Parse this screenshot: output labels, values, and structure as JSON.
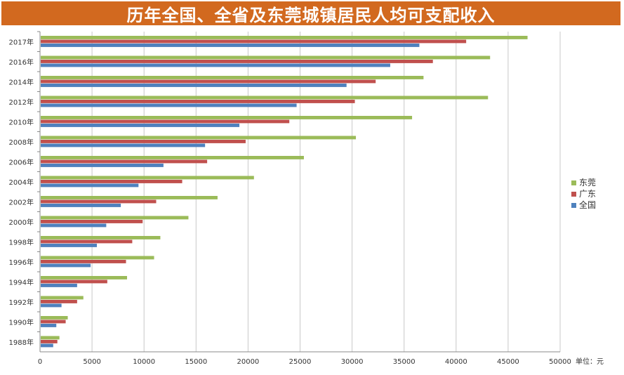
{
  "chart_data": {
    "type": "bar",
    "orientation": "horizontal",
    "title": "历年全国、全省及东莞城镇居民人均可支配收入",
    "unit_label": "单位：元",
    "categories": [
      "2017年",
      "2016年",
      "2014年",
      "2012年",
      "2010年",
      "2008年",
      "2006年",
      "2004年",
      "2002年",
      "2000年",
      "1998年",
      "1996年",
      "1994年",
      "1992年",
      "1990年",
      "1988年"
    ],
    "series": [
      {
        "name": "东莞",
        "color": "#9bbb59",
        "values": [
          46800,
          43200,
          36800,
          43000,
          35700,
          30300,
          25300,
          20500,
          17000,
          14200,
          11500,
          10900,
          8300,
          4100,
          2600,
          1800
        ]
      },
      {
        "name": "广东",
        "color": "#c0504d",
        "values": [
          40900,
          37700,
          32200,
          30200,
          23900,
          19700,
          16000,
          13600,
          11100,
          9800,
          8800,
          8200,
          6400,
          3500,
          2400,
          1600
        ]
      },
      {
        "name": "全国",
        "color": "#4f81bd",
        "values": [
          36400,
          33600,
          29400,
          24600,
          19100,
          15800,
          11800,
          9400,
          7700,
          6300,
          5400,
          4800,
          3500,
          2000,
          1500,
          1200
        ]
      }
    ],
    "x_ticks": [
      0,
      5000,
      10000,
      15000,
      20000,
      25000,
      30000,
      35000,
      40000,
      45000,
      50000
    ],
    "xlim": [
      0,
      50000
    ],
    "grid": true,
    "legend_position": "right"
  }
}
